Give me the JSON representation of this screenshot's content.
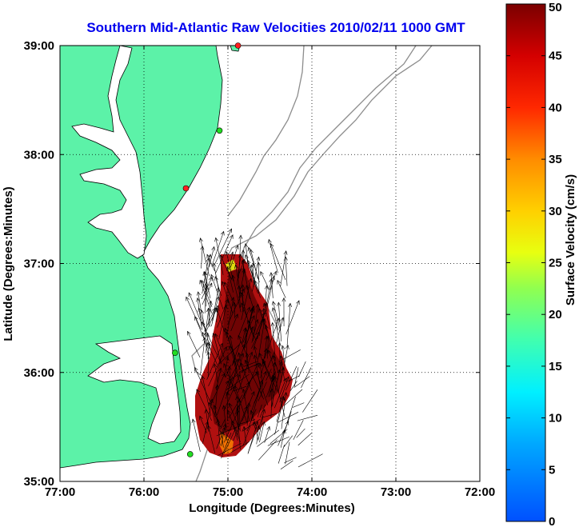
{
  "title": "Southern Mid-Atlantic Raw Velocities 2010/02/11 1000 GMT",
  "colors": {
    "title": "#0000ee",
    "land": "#5cf2a8",
    "coast": "#000000",
    "bathymetry": "#8c8c8c",
    "grid": "#000000",
    "site_active": "#22dd22",
    "site_inactive": "#ff2020"
  },
  "chart_data": {
    "type": "map",
    "xlabel": "Longitude (Degrees:Minutes)",
    "ylabel": "Latitude (Degrees:Minutes)",
    "x_ticks": [
      {
        "value": -77,
        "label": "77:00"
      },
      {
        "value": -76,
        "label": "76:00"
      },
      {
        "value": -75,
        "label": "75:00"
      },
      {
        "value": -74,
        "label": "74:00"
      },
      {
        "value": -73,
        "label": "73:00"
      },
      {
        "value": -72,
        "label": "72:00"
      }
    ],
    "y_ticks": [
      {
        "value": 35,
        "label": "35:00"
      },
      {
        "value": 36,
        "label": "36:00"
      },
      {
        "value": 37,
        "label": "37:00"
      },
      {
        "value": 38,
        "label": "38:00"
      },
      {
        "value": 39,
        "label": "39:00"
      }
    ],
    "xlim": [
      -77,
      -72
    ],
    "ylim": [
      35,
      39
    ],
    "grid": true,
    "colorbar": {
      "label": "Surface Velocity (cm/s)",
      "range": [
        0,
        50
      ],
      "ticks": [
        "0",
        "5",
        "10",
        "15",
        "20",
        "25",
        "30",
        "35",
        "40",
        "45",
        "50"
      ]
    },
    "hf_radar_sites": [
      {
        "lon": -74.88,
        "lat": 39.0,
        "status": "inactive"
      },
      {
        "lon": -75.1,
        "lat": 38.22,
        "status": "active"
      },
      {
        "lon": -75.5,
        "lat": 37.69,
        "status": "inactive"
      },
      {
        "lon": -75.63,
        "lat": 36.18,
        "status": "active"
      },
      {
        "lon": -75.45,
        "lat": 35.25,
        "status": "active"
      }
    ],
    "velocity_region": {
      "lon_range": [
        -75.3,
        -74.15
      ],
      "lat_range": [
        35.25,
        37.05
      ],
      "dominant_speed_cm_s": 50,
      "dominant_direction": "north"
    }
  }
}
